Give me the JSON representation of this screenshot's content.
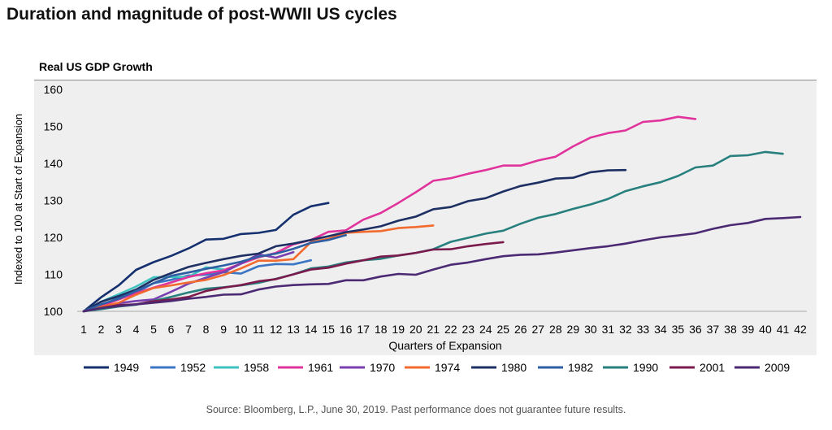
{
  "title": "Duration and magnitude of post-WWII US cycles",
  "source": "Source: Bloomberg, L.P., June 30, 2019. Past performance does not guarantee future results.",
  "chart_data": {
    "type": "line",
    "subtitle": "Real US GDP Growth",
    "xlabel": "Quarters of Expansion",
    "ylabel": "Indexed to 100 at Start of Expansion",
    "xlim": [
      1,
      42
    ],
    "ylim": [
      100,
      160
    ],
    "yticks": [
      100,
      110,
      120,
      130,
      140,
      150,
      160
    ],
    "xticks": [
      1,
      2,
      3,
      4,
      5,
      6,
      7,
      8,
      9,
      10,
      11,
      12,
      13,
      14,
      15,
      16,
      17,
      18,
      19,
      20,
      21,
      22,
      23,
      24,
      25,
      26,
      27,
      28,
      29,
      30,
      31,
      32,
      33,
      34,
      35,
      36,
      37,
      38,
      39,
      40,
      41,
      42
    ],
    "grid": false,
    "legend_position": "bottom",
    "series": [
      {
        "name": "1949",
        "color": "#14306e",
        "values": [
          100,
          103.8,
          107,
          111.2,
          113.3,
          115,
          117,
          119.4,
          119.6,
          120.9,
          121.2,
          122,
          126.1,
          128.4,
          129.3
        ]
      },
      {
        "name": "1952",
        "color": "#3b75c4",
        "values": [
          100,
          101.4,
          103.8,
          105.1,
          107.6,
          108.5,
          109.7,
          109.9,
          110.6,
          110.2,
          112.2,
          112.8,
          112.7,
          113.8
        ]
      },
      {
        "name": "1958",
        "color": "#3ec2c0",
        "values": [
          100,
          102.6,
          104.6,
          106.7,
          109.2,
          109.3,
          109.3,
          111.9,
          111.3
        ]
      },
      {
        "name": "1961",
        "color": "#e0339b",
        "values": [
          100,
          101.4,
          103.2,
          104.9,
          106.4,
          107.8,
          109.3,
          110.3,
          111.1,
          112.9,
          114.6,
          115.8,
          118.1,
          119.3,
          121.5,
          121.9,
          124.8,
          126.6,
          129.3,
          132.2,
          135.3,
          136,
          137.2,
          138.2,
          139.4,
          139.4,
          140.8,
          141.8,
          144.6,
          147,
          148.2,
          148.9,
          151.2,
          151.6,
          152.6,
          152
        ]
      },
      {
        "name": "1970",
        "color": "#7a3fb1",
        "values": [
          100,
          100.9,
          102.2,
          102.8,
          103.2,
          105.3,
          107.5,
          109.1,
          110.6,
          112.9,
          115.4,
          114.5,
          116
        ]
      },
      {
        "name": "1974",
        "color": "#f26a2e",
        "values": [
          100,
          101.2,
          102.3,
          104.5,
          106.3,
          107,
          107.8,
          108.5,
          109.8,
          111.6,
          113.7,
          113.7,
          114.1,
          118.7,
          119.6,
          121.2,
          121.5,
          121.7,
          122.5,
          122.8,
          123.2
        ]
      },
      {
        "name": "1980",
        "color": "#1d2f63",
        "values": [
          100,
          102.6,
          104.1,
          105.9,
          108.5,
          110.3,
          112,
          113.1,
          114.1,
          115,
          115.6,
          117.6,
          118.3,
          119.3,
          120.3,
          121.4,
          122.1,
          123,
          124.5,
          125.6,
          127.6,
          128.2,
          129.8,
          130.6,
          132.4,
          133.9,
          134.8,
          135.9,
          136.1,
          137.6,
          138.1,
          138.2
        ]
      },
      {
        "name": "1982",
        "color": "#2e5ea3",
        "values": [
          100,
          101.9,
          103.4,
          105.5,
          107.6,
          109.6,
          110.5,
          111.5,
          112.4,
          113.4,
          114.8,
          115.6,
          116.9,
          118.5,
          119.3,
          120.6
        ]
      },
      {
        "name": "1990",
        "color": "#27807e",
        "values": [
          100,
          100.6,
          101.3,
          101.8,
          102.8,
          103.9,
          105.1,
          106.1,
          106.5,
          107,
          107.7,
          108.8,
          110,
          111.6,
          112.1,
          113.2,
          113.8,
          114.2,
          115.1,
          115.8,
          116.8,
          118.8,
          119.9,
          121,
          121.8,
          123.7,
          125.3,
          126.3,
          127.7,
          128.9,
          130.4,
          132.5,
          133.8,
          134.9,
          136.6,
          138.9,
          139.4,
          142,
          142.2,
          143.1,
          142.6
        ]
      },
      {
        "name": "2001",
        "color": "#7b1a4c",
        "values": [
          100,
          100.9,
          101.7,
          101.9,
          102.7,
          103.2,
          103.9,
          105.5,
          106.4,
          107.1,
          108.1,
          108.7,
          110,
          111.3,
          111.8,
          112.9,
          113.8,
          114.8,
          115.1,
          115.8,
          116.7,
          116.8,
          117.6,
          118.2,
          118.7
        ]
      },
      {
        "name": "2009",
        "color": "#4b2a73",
        "values": [
          100,
          100.9,
          101.4,
          101.9,
          102.3,
          102.8,
          103.4,
          103.9,
          104.5,
          104.6,
          105.9,
          106.7,
          107.1,
          107.3,
          107.4,
          108.4,
          108.4,
          109.4,
          110.1,
          109.9,
          111.3,
          112.6,
          113.2,
          114.1,
          114.9,
          115.3,
          115.4,
          115.9,
          116.5,
          117.1,
          117.6,
          118.3,
          119.2,
          120,
          120.5,
          121.1,
          122.3,
          123.3,
          123.9,
          125,
          125.2,
          125.5
        ]
      }
    ]
  }
}
